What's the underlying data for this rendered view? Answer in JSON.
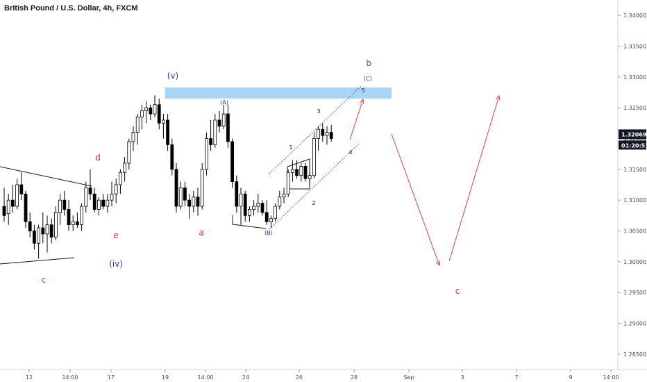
{
  "title": "British Pound / U.S. Dollar, 4h, FXCM",
  "chart_data": {
    "type": "candlestick",
    "instrument": "British Pound / U.S. Dollar",
    "timeframe": "4h",
    "source": "FXCM",
    "ylim": [
      1.2825,
      1.3425
    ],
    "y_ticks": [
      "1.28500",
      "1.29000",
      "1.29500",
      "1.30000",
      "1.30500",
      "1.31000",
      "1.31500",
      "1.32000",
      "1.32500",
      "1.33000",
      "1.33500",
      "1.34000"
    ],
    "x_ticks": [
      "12",
      "14:00",
      "17",
      "19",
      "14:00",
      "24",
      "26",
      "28",
      "Sep",
      "3",
      "7",
      "9",
      "14:00"
    ],
    "last_price": "1.32069",
    "countdown": "01:20:51",
    "candles": [
      [
        1.309,
        1.312,
        1.3065,
        1.3075
      ],
      [
        1.3078,
        1.311,
        1.306,
        1.31
      ],
      [
        1.31,
        1.3125,
        1.308,
        1.309
      ],
      [
        1.309,
        1.3135,
        1.3085,
        1.3125
      ],
      [
        1.3125,
        1.3145,
        1.31,
        1.311
      ],
      [
        1.311,
        1.3115,
        1.3055,
        1.3065
      ],
      [
        1.3065,
        1.308,
        1.304,
        1.305
      ],
      [
        1.305,
        1.306,
        1.302,
        1.303
      ],
      [
        1.303,
        1.306,
        1.3005,
        1.3055
      ],
      [
        1.3055,
        1.308,
        1.303,
        1.3045
      ],
      [
        1.3045,
        1.3075,
        1.3015,
        1.306
      ],
      [
        1.306,
        1.307,
        1.303,
        1.304
      ],
      [
        1.304,
        1.309,
        1.3035,
        1.308
      ],
      [
        1.308,
        1.311,
        1.306,
        1.31
      ],
      [
        1.31,
        1.3115,
        1.3075,
        1.3085
      ],
      [
        1.3085,
        1.31,
        1.305,
        1.306
      ],
      [
        1.306,
        1.3075,
        1.305,
        1.3065
      ],
      [
        1.3065,
        1.308,
        1.3055,
        1.306
      ],
      [
        1.306,
        1.3095,
        1.305,
        1.309
      ],
      [
        1.309,
        1.313,
        1.308,
        1.312
      ],
      [
        1.312,
        1.315,
        1.31,
        1.311
      ],
      [
        1.311,
        1.312,
        1.308,
        1.3085
      ],
      [
        1.3085,
        1.3105,
        1.3075,
        1.31
      ],
      [
        1.31,
        1.311,
        1.3085,
        1.309
      ],
      [
        1.309,
        1.311,
        1.308,
        1.31
      ],
      [
        1.31,
        1.313,
        1.309,
        1.311
      ],
      [
        1.311,
        1.3135,
        1.3095,
        1.3125
      ],
      [
        1.3125,
        1.315,
        1.311,
        1.3145
      ],
      [
        1.3145,
        1.317,
        1.313,
        1.316
      ],
      [
        1.316,
        1.32,
        1.315,
        1.3195
      ],
      [
        1.3195,
        1.322,
        1.318,
        1.321
      ],
      [
        1.321,
        1.324,
        1.319,
        1.3235
      ],
      [
        1.3235,
        1.3255,
        1.3215,
        1.3245
      ],
      [
        1.3245,
        1.326,
        1.3225,
        1.325
      ],
      [
        1.325,
        1.3255,
        1.323,
        1.324
      ],
      [
        1.324,
        1.327,
        1.3235,
        1.3255
      ],
      [
        1.3255,
        1.3265,
        1.3215,
        1.3225
      ],
      [
        1.3225,
        1.324,
        1.32,
        1.323
      ],
      [
        1.323,
        1.324,
        1.318,
        1.319
      ],
      [
        1.319,
        1.32,
        1.314,
        1.315
      ],
      [
        1.315,
        1.316,
        1.308,
        1.309
      ],
      [
        1.309,
        1.313,
        1.3085,
        1.312
      ],
      [
        1.312,
        1.313,
        1.309,
        1.31
      ],
      [
        1.31,
        1.311,
        1.307,
        1.309
      ],
      [
        1.309,
        1.3115,
        1.308,
        1.3105
      ],
      [
        1.3105,
        1.312,
        1.3075,
        1.309
      ],
      [
        1.309,
        1.316,
        1.3085,
        1.315
      ],
      [
        1.315,
        1.321,
        1.314,
        1.32
      ],
      [
        1.32,
        1.323,
        1.318,
        1.319
      ],
      [
        1.319,
        1.324,
        1.3185,
        1.323
      ],
      [
        1.323,
        1.3245,
        1.321,
        1.322
      ],
      [
        1.322,
        1.3255,
        1.3215,
        1.324
      ],
      [
        1.324,
        1.3255,
        1.3185,
        1.3195
      ],
      [
        1.3195,
        1.32,
        1.312,
        1.313
      ],
      [
        1.313,
        1.314,
        1.308,
        1.309
      ],
      [
        1.309,
        1.312,
        1.306,
        1.311
      ],
      [
        1.311,
        1.3115,
        1.3065,
        1.3075
      ],
      [
        1.3075,
        1.309,
        1.3065,
        1.3085
      ],
      [
        1.3085,
        1.31,
        1.3075,
        1.309
      ],
      [
        1.309,
        1.311,
        1.308,
        1.3095
      ],
      [
        1.3095,
        1.31,
        1.3075,
        1.308
      ],
      [
        1.308,
        1.31,
        1.306,
        1.3065
      ],
      [
        1.3065,
        1.3075,
        1.3055,
        1.307
      ],
      [
        1.307,
        1.3095,
        1.3065,
        1.309
      ],
      [
        1.309,
        1.3115,
        1.3085,
        1.3105
      ],
      [
        1.3105,
        1.312,
        1.3095,
        1.311
      ],
      [
        1.311,
        1.315,
        1.3105,
        1.3145
      ],
      [
        1.3145,
        1.3165,
        1.313,
        1.315
      ],
      [
        1.315,
        1.3165,
        1.3135,
        1.314
      ],
      [
        1.314,
        1.316,
        1.313,
        1.3155
      ],
      [
        1.3155,
        1.316,
        1.313,
        1.3135
      ],
      [
        1.3135,
        1.3145,
        1.3125,
        1.314
      ],
      [
        1.314,
        1.321,
        1.3135,
        1.32
      ],
      [
        1.32,
        1.322,
        1.318,
        1.3215
      ],
      [
        1.3215,
        1.3225,
        1.3195,
        1.3205
      ],
      [
        1.3205,
        1.322,
        1.319,
        1.321
      ],
      [
        1.321,
        1.3222,
        1.3195,
        1.32
      ]
    ],
    "annotations": [
      {
        "label": "(v)",
        "color": "#3b2fbf"
      },
      {
        "label": "(iv)",
        "color": "#3b2fbf"
      },
      {
        "label": "(A)",
        "color": "#3b2fbf"
      },
      {
        "label": "(B)",
        "color": "#3b2fbf"
      },
      {
        "label": "(C)",
        "color": "#3b2fbf"
      },
      {
        "label": "a",
        "color": "#d32f2f"
      },
      {
        "label": "b",
        "color": "#d32f2f"
      },
      {
        "label": "c",
        "color": "#d32f2f"
      },
      {
        "label": "c",
        "color": "#d32f2f"
      },
      {
        "label": "d",
        "color": "#d32f2f"
      },
      {
        "label": "e",
        "color": "#d32f2f"
      },
      {
        "label": "1",
        "color": "#131722"
      },
      {
        "label": "2",
        "color": "#131722"
      },
      {
        "label": "3",
        "color": "#131722"
      },
      {
        "label": "4",
        "color": "#131722"
      },
      {
        "label": "5",
        "color": "#131722"
      }
    ],
    "resistance_zone": [
      1.3265,
      1.3283
    ],
    "colors": {
      "up": "#ffffff",
      "down": "#000000",
      "zone": "#a8d4f8",
      "projection": "#e04040",
      "channel": "#3060c0"
    }
  }
}
